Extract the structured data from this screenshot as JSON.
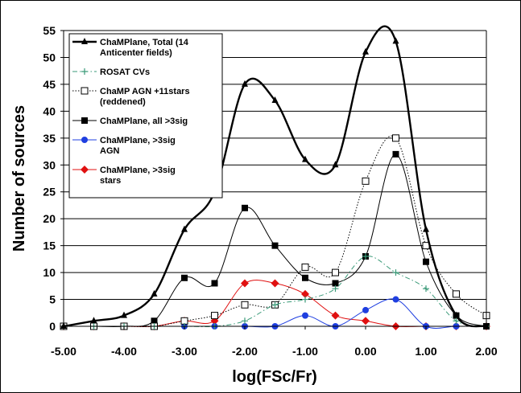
{
  "chart_data": {
    "type": "line",
    "title": "",
    "xlabel": "log(FSc/Fr)",
    "ylabel": "Number of sources",
    "xlim": [
      -5.0,
      2.0
    ],
    "ylim": [
      0,
      55
    ],
    "x_ticks": [
      "-5.00",
      "-4.00",
      "-3.00",
      "-2.00",
      "-1.00",
      "0.00",
      "1.00",
      "2.00"
    ],
    "y_ticks": [
      "0",
      "5",
      "10",
      "15",
      "20",
      "25",
      "30",
      "35",
      "40",
      "45",
      "50",
      "55"
    ],
    "grid": "horizontal",
    "legend_position": "top-left",
    "x": [
      -5.0,
      -4.5,
      -4.0,
      -3.5,
      -3.0,
      -2.5,
      -2.0,
      -1.5,
      -1.0,
      -0.5,
      0.0,
      0.5,
      1.0,
      1.5,
      2.0
    ],
    "series": [
      {
        "name": "ChaMPlane, Total (14 Anticenter fields)",
        "legend_lines": [
          "ChaMPlane, Total (14",
          "Anticenter fields)"
        ],
        "color": "#000000",
        "marker": "triangle",
        "style": "solid-thick",
        "values": [
          0,
          1,
          2,
          6,
          18,
          25,
          45,
          42,
          31,
          30,
          51,
          53,
          18,
          2,
          0
        ]
      },
      {
        "name": "ROSAT CVs",
        "legend_lines": [
          "ROSAT CVs"
        ],
        "color": "#3a9a78",
        "marker": "plus",
        "style": "dashdot",
        "values": [
          0,
          0,
          0,
          0,
          0,
          0,
          1,
          4,
          5,
          7,
          13,
          10,
          7,
          1,
          0
        ]
      },
      {
        "name": "ChaMP AGN +11stars (reddened)",
        "legend_lines": [
          "ChaMP AGN +11stars",
          "(reddened)"
        ],
        "color": "#000000",
        "marker": "open-square",
        "style": "dotted",
        "values": [
          0,
          0,
          0,
          0,
          1,
          2,
          4,
          4,
          11,
          10,
          27,
          35,
          15,
          6,
          2
        ]
      },
      {
        "name": "ChaMPlane, all >3sig",
        "legend_lines": [
          "ChaMPlane, all >3sig"
        ],
        "color": "#000000",
        "marker": "filled-square",
        "style": "solid-thin",
        "values": [
          0,
          0,
          0,
          1,
          9,
          8,
          22,
          15,
          9,
          8,
          13,
          32,
          12,
          2,
          0
        ]
      },
      {
        "name": "ChaMPlane, >3sig AGN",
        "legend_lines": [
          "ChaMPlane, >3sig",
          "AGN"
        ],
        "color": "#1f3fe0",
        "marker": "circle",
        "style": "solid-thin",
        "values": [
          0,
          0,
          0,
          0,
          0,
          0,
          0,
          0,
          2,
          0,
          3,
          5,
          0,
          0,
          0
        ]
      },
      {
        "name": "ChaMPlane, >3sig stars",
        "legend_lines": [
          "ChaMPlane, >3sig",
          "stars"
        ],
        "color": "#e01010",
        "marker": "diamond",
        "style": "solid-thin",
        "values": [
          0,
          0,
          0,
          0,
          1,
          1,
          8,
          8,
          6,
          2,
          1,
          0,
          0,
          0,
          0
        ]
      }
    ]
  }
}
